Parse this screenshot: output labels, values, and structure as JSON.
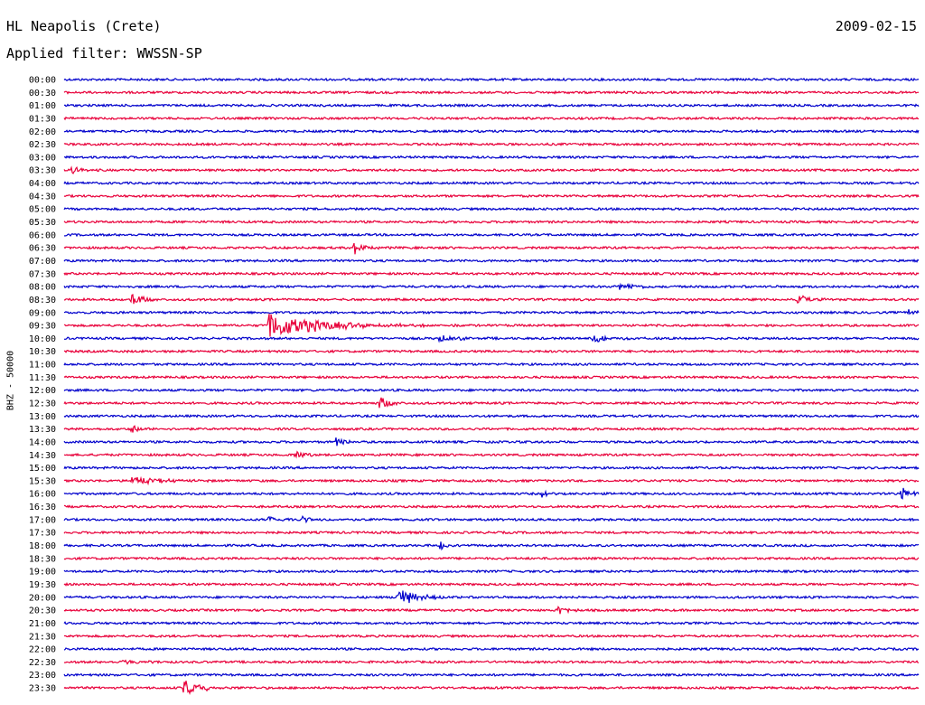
{
  "header": {
    "station": "HL Neapolis (Crete)",
    "date": "2009-02-15",
    "filter": "Applied filter: WWSSN-SP"
  },
  "chart_data": {
    "type": "line",
    "channel_label": "BHZ - 50000",
    "colors": {
      "even_row": "#0000cc",
      "odd_row": "#e8003a"
    },
    "rows": [
      "00:00",
      "00:30",
      "01:00",
      "01:30",
      "02:00",
      "02:30",
      "03:00",
      "03:30",
      "04:00",
      "04:30",
      "05:00",
      "05:30",
      "06:00",
      "06:30",
      "07:00",
      "07:30",
      "08:00",
      "08:30",
      "09:00",
      "09:30",
      "10:00",
      "10:30",
      "11:00",
      "11:30",
      "12:00",
      "12:30",
      "13:00",
      "13:30",
      "14:00",
      "14:30",
      "15:00",
      "15:30",
      "16:00",
      "16:30",
      "17:00",
      "17:30",
      "18:00",
      "18:30",
      "19:00",
      "19:30",
      "20:00",
      "20:30",
      "21:00",
      "21:30",
      "22:00",
      "22:30",
      "23:00",
      "23:30"
    ],
    "events": [
      {
        "row": "03:30",
        "t": 0.01,
        "amp": 4,
        "dur": 0.01
      },
      {
        "row": "06:30",
        "t": 0.34,
        "amp": 7,
        "dur": 0.01
      },
      {
        "row": "08:00",
        "t": 0.65,
        "amp": 4,
        "dur": 0.02
      },
      {
        "row": "08:30",
        "t": 0.08,
        "amp": 8,
        "dur": 0.01
      },
      {
        "row": "08:30",
        "t": 0.86,
        "amp": 5,
        "dur": 0.01
      },
      {
        "row": "09:00",
        "t": 0.99,
        "amp": 5,
        "dur": 0.01
      },
      {
        "row": "09:30",
        "t": 0.24,
        "amp": 14,
        "dur": 0.06
      },
      {
        "row": "10:00",
        "t": 0.44,
        "amp": 4,
        "dur": 0.02
      },
      {
        "row": "10:00",
        "t": 0.62,
        "amp": 4,
        "dur": 0.02
      },
      {
        "row": "12:30",
        "t": 0.37,
        "amp": 7,
        "dur": 0.01
      },
      {
        "row": "13:30",
        "t": 0.08,
        "amp": 4,
        "dur": 0.01
      },
      {
        "row": "14:00",
        "t": 0.32,
        "amp": 5,
        "dur": 0.01
      },
      {
        "row": "14:30",
        "t": 0.27,
        "amp": 6,
        "dur": 0.01
      },
      {
        "row": "15:30",
        "t": 0.08,
        "amp": 5,
        "dur": 0.03
      },
      {
        "row": "16:00",
        "t": 0.56,
        "amp": 4,
        "dur": 0.01
      },
      {
        "row": "16:00",
        "t": 0.98,
        "amp": 7,
        "dur": 0.01
      },
      {
        "row": "17:00",
        "t": 0.24,
        "amp": 5,
        "dur": 0.01
      },
      {
        "row": "17:00",
        "t": 0.28,
        "amp": 4,
        "dur": 0.01
      },
      {
        "row": "18:00",
        "t": 0.44,
        "amp": 5,
        "dur": 0.01
      },
      {
        "row": "20:00",
        "t": 0.39,
        "amp": 11,
        "dur": 0.02
      },
      {
        "row": "20:30",
        "t": 0.58,
        "amp": 6,
        "dur": 0.01
      },
      {
        "row": "22:30",
        "t": 0.07,
        "amp": 3,
        "dur": 0.02
      },
      {
        "row": "23:30",
        "t": 0.14,
        "amp": 10,
        "dur": 0.02
      }
    ],
    "grid": false
  }
}
